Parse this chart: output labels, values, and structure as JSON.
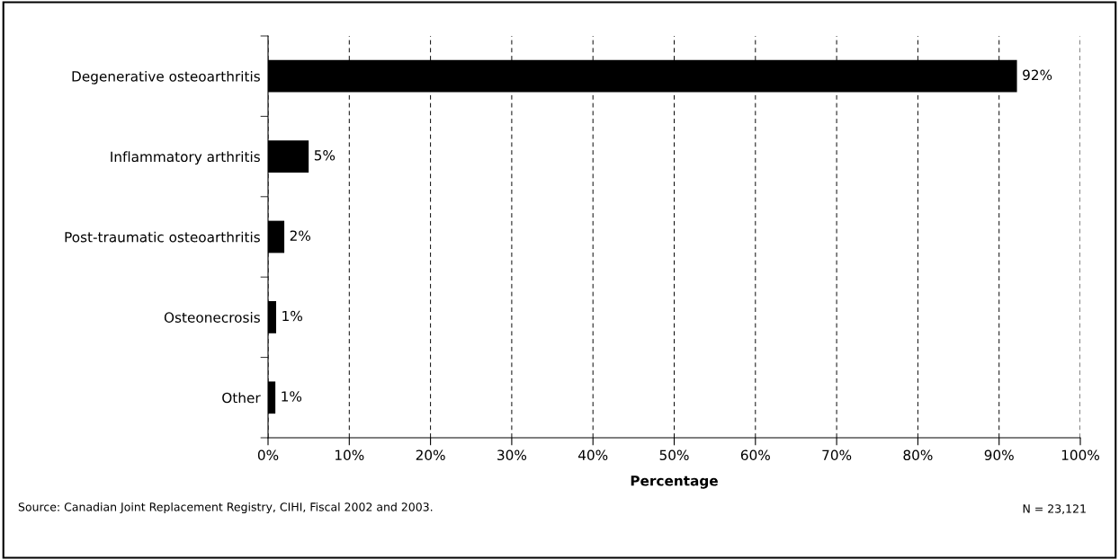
{
  "chart_data": {
    "type": "bar",
    "orientation": "horizontal",
    "categories": [
      "Degenerative osteoarthritis",
      "Inflammatory arthritis",
      "Post-traumatic osteoarthritis",
      "Osteonecrosis",
      "Other"
    ],
    "values": [
      92.2,
      5.0,
      2.0,
      1.0,
      0.9
    ],
    "value_labels": [
      "92%",
      "5%",
      "2%",
      "1%",
      "1%"
    ],
    "color": "#000000",
    "xlabel": "Percentage",
    "xlim": [
      0,
      100
    ],
    "xticks": [
      {
        "value": 0,
        "label": "0%"
      },
      {
        "value": 10,
        "label": "10%"
      },
      {
        "value": 20,
        "label": "20%"
      },
      {
        "value": 30,
        "label": "30%"
      },
      {
        "value": 40,
        "label": "40%"
      },
      {
        "value": 50,
        "label": "50%"
      },
      {
        "value": 60,
        "label": "60%"
      },
      {
        "value": 70,
        "label": "70%"
      },
      {
        "value": 80,
        "label": "80%"
      },
      {
        "value": 90,
        "label": "90%"
      },
      {
        "value": 100,
        "label": "100%"
      }
    ],
    "grid": "x",
    "annotations": [
      "Source: Canadian Joint Replacement Registry, CIHI, Fiscal 2002 and 2003.",
      "N = 23,121"
    ]
  }
}
